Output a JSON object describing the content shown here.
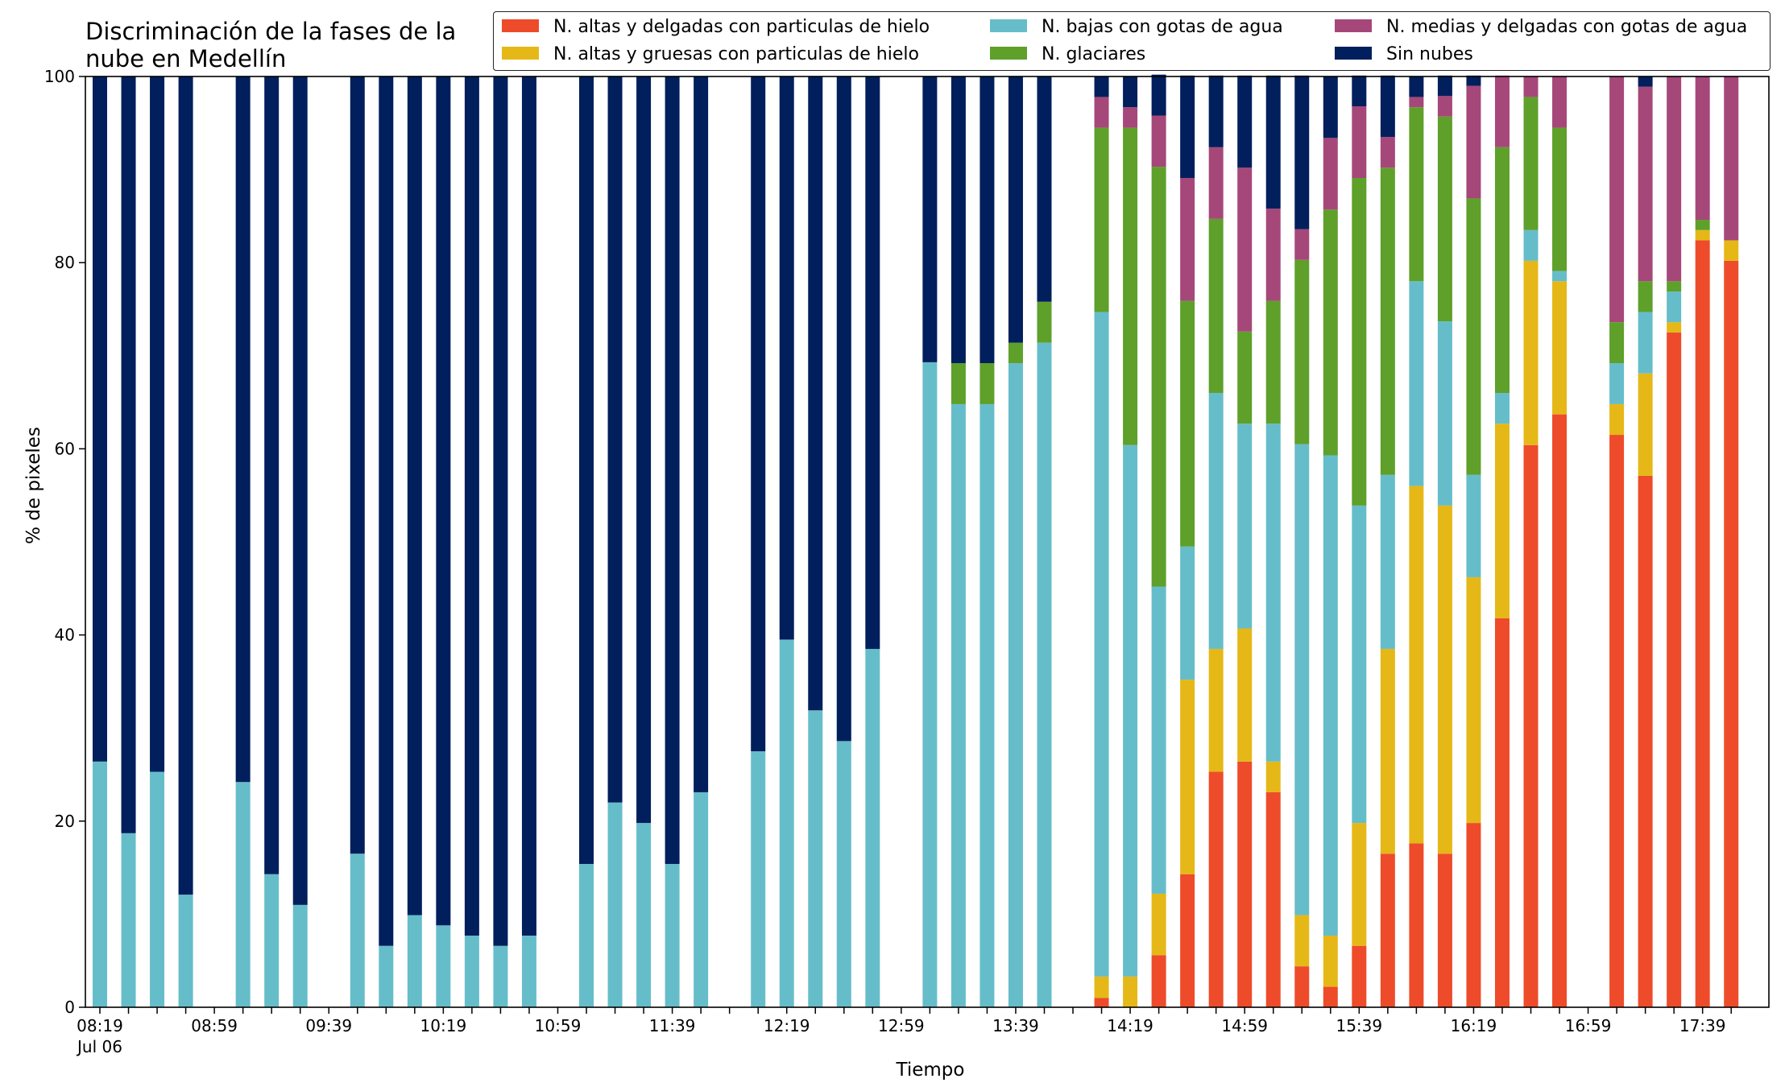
{
  "chart_data": {
    "type": "bar",
    "stacked": true,
    "title": "Discriminación de la fases de la nube en Medellín",
    "xlabel": "Tiempo",
    "ylabel": "% de pixeles",
    "ylim": [
      0,
      100
    ],
    "yticks": [
      "0",
      "20",
      "40",
      "60",
      "80",
      "100"
    ],
    "xtick_labels": [
      "08:19",
      "08:59",
      "09:39",
      "10:19",
      "10:59",
      "11:39",
      "12:19",
      "12:59",
      "13:39",
      "14:19",
      "14:59",
      "15:39",
      "16:19",
      "16:59",
      "17:39"
    ],
    "xtick_sublabel": "Jul 06",
    "x_start_minutes": 499,
    "x_step_minutes": 10,
    "legend_position": "top-right",
    "categories": [
      "08:19",
      "08:29",
      "08:39",
      "08:49",
      "08:59",
      "09:09",
      "09:19",
      "09:29",
      "09:39",
      "09:49",
      "09:59",
      "10:09",
      "10:19",
      "10:29",
      "10:39",
      "10:49",
      "10:59",
      "11:09",
      "11:19",
      "11:29",
      "11:39",
      "11:49",
      "11:59",
      "12:09",
      "12:19",
      "12:29",
      "12:39",
      "12:49",
      "12:59",
      "13:09",
      "13:19",
      "13:29",
      "13:39",
      "13:49",
      "13:59",
      "14:09",
      "14:19",
      "14:29",
      "14:39",
      "14:49",
      "14:59",
      "15:09",
      "15:19",
      "15:29",
      "15:39",
      "15:49",
      "15:59",
      "16:09",
      "16:19",
      "16:29",
      "16:39",
      "16:49",
      "16:59",
      "17:09",
      "17:19",
      "17:29",
      "17:39",
      "17:49"
    ],
    "series": [
      {
        "name": "N. altas y delgadas con particulas de hielo",
        "color": "#ee4b2b",
        "values": [
          0,
          0,
          0,
          0,
          null,
          0,
          0,
          0,
          null,
          0,
          0,
          0,
          0,
          0,
          0,
          0,
          null,
          0,
          0,
          0,
          0,
          0,
          null,
          0,
          0,
          0,
          0,
          0,
          null,
          0,
          0,
          0,
          0,
          0,
          null,
          1,
          0,
          5.6,
          14.3,
          25.3,
          26.4,
          23.1,
          4.4,
          2.2,
          6.6,
          16.5,
          17.6,
          16.5,
          19.8,
          41.8,
          60.4,
          63.7,
          null,
          61.5,
          57.1,
          72.5,
          82.4,
          80.2
        ]
      },
      {
        "name": "N. altas y gruesas con particulas de hielo",
        "color": "#e5b817",
        "values": [
          0,
          0,
          0,
          0,
          null,
          0,
          0,
          0,
          null,
          0,
          0,
          0,
          0,
          0,
          0,
          0,
          null,
          0,
          0,
          0,
          0,
          0,
          null,
          0,
          0,
          0,
          0,
          0,
          null,
          0,
          0,
          0,
          0,
          0,
          null,
          2.3,
          3.3,
          6.6,
          20.9,
          13.2,
          14.3,
          3.3,
          5.5,
          5.5,
          13.2,
          22,
          38.4,
          37.4,
          26.4,
          20.9,
          19.8,
          14.3,
          null,
          3.3,
          11,
          1.1,
          1.1,
          2.2
        ]
      },
      {
        "name": "N. bajas con gotas de agua",
        "color": "#66bdca",
        "values": [
          26.4,
          18.7,
          25.3,
          12.1,
          null,
          24.2,
          14.3,
          11,
          null,
          16.5,
          6.6,
          9.9,
          8.8,
          7.7,
          6.6,
          7.7,
          null,
          15.4,
          22,
          19.8,
          15.4,
          23.1,
          null,
          27.5,
          39.5,
          31.9,
          28.6,
          38.5,
          null,
          69.3,
          64.8,
          64.8,
          69.2,
          71.4,
          null,
          71.4,
          57.1,
          33,
          14.3,
          27.5,
          22,
          36.3,
          50.6,
          51.6,
          34.1,
          18.7,
          22,
          19.8,
          11,
          3.3,
          3.3,
          1.1,
          null,
          4.4,
          6.6,
          3.3,
          0,
          0
        ]
      },
      {
        "name": "N. glaciares",
        "color": "#5ea02a",
        "values": [
          0,
          0,
          0,
          0,
          null,
          0,
          0,
          0,
          null,
          0,
          0,
          0,
          0,
          0,
          0,
          0,
          null,
          0,
          0,
          0,
          0,
          0,
          null,
          0,
          0,
          0,
          0,
          0,
          null,
          0,
          4.4,
          4.4,
          2.2,
          4.4,
          null,
          19.8,
          34.1,
          45.1,
          26.4,
          18.7,
          9.9,
          13.2,
          19.8,
          26.4,
          35.2,
          33,
          18.7,
          22,
          29.7,
          26.4,
          14.3,
          15.4,
          null,
          4.4,
          3.3,
          1.1,
          1.1,
          0
        ]
      },
      {
        "name": "N. medias y delgadas con gotas de agua",
        "color": "#a6477a",
        "values": [
          0,
          0,
          0,
          0,
          null,
          0,
          0,
          0,
          null,
          0,
          0,
          0,
          0,
          0,
          0,
          0,
          null,
          0,
          0,
          0,
          0,
          0,
          null,
          0,
          0,
          0,
          0,
          0,
          null,
          0,
          0,
          0,
          0,
          0,
          null,
          3.3,
          2.2,
          5.5,
          13.2,
          7.7,
          17.6,
          9.9,
          3.3,
          7.7,
          7.7,
          3.3,
          1.1,
          2.2,
          12.1,
          7.7,
          2.2,
          5.5,
          null,
          26.4,
          20.9,
          22,
          15.4,
          17.6
        ]
      },
      {
        "name": "Sin nubes",
        "color": "#001f5c",
        "values": [
          73.6,
          81.3,
          74.7,
          87.9,
          null,
          75.8,
          85.7,
          89,
          null,
          83.5,
          93.4,
          90.1,
          91.2,
          92.3,
          93.4,
          92.3,
          null,
          84.6,
          78,
          80.2,
          84.6,
          76.9,
          null,
          72.5,
          60.5,
          68.1,
          71.4,
          61.5,
          null,
          30.7,
          30.8,
          30.8,
          28.6,
          24.2,
          null,
          2.2,
          3.3,
          4.4,
          11,
          7.7,
          9.9,
          14.3,
          16.5,
          6.6,
          3.3,
          6.6,
          2.2,
          2.2,
          1.1,
          0,
          0,
          0,
          null,
          0,
          1.1,
          0,
          0,
          0
        ]
      }
    ]
  }
}
